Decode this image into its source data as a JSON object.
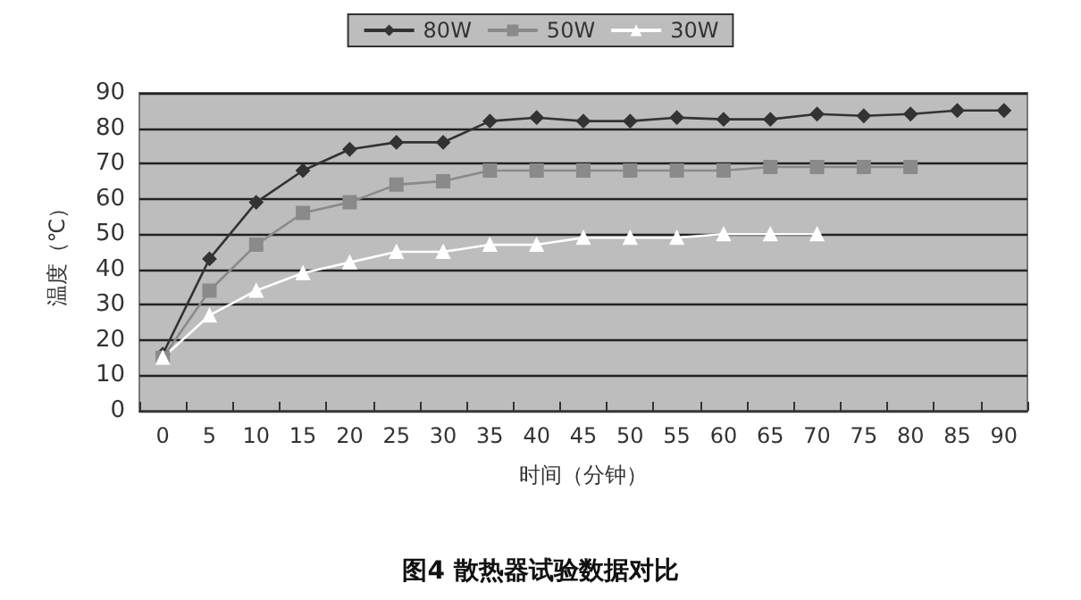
{
  "chart_data": {
    "type": "line",
    "title": "图4 散热器试验数据对比",
    "xlabel": "时间（分钟）",
    "ylabel": "温度（℃）",
    "categories": [
      "0",
      "5",
      "10",
      "15",
      "20",
      "25",
      "30",
      "35",
      "40",
      "45",
      "50",
      "55",
      "60",
      "65",
      "70",
      "75",
      "80",
      "85",
      "90"
    ],
    "ylim": [
      0,
      90
    ],
    "yticks": [
      0,
      10,
      20,
      30,
      40,
      50,
      60,
      70,
      80,
      90
    ],
    "grid": "y",
    "legend": "top",
    "series": [
      {
        "name": "80W",
        "color": "#333333",
        "marker": "diamond",
        "values": [
          16,
          43,
          59,
          68,
          74,
          76,
          76,
          82,
          83,
          82,
          82,
          83,
          82.5,
          82.5,
          84,
          83.5,
          84,
          85,
          85
        ]
      },
      {
        "name": "50W",
        "color": "#8a8a8a",
        "marker": "square",
        "values": [
          15,
          34,
          47,
          56,
          59,
          64,
          65,
          68,
          68,
          68,
          68,
          68,
          68,
          69,
          69,
          69,
          69,
          null,
          null
        ]
      },
      {
        "name": "30W",
        "color": "#ffffff",
        "marker": "triangle",
        "values": [
          15,
          27,
          34,
          39,
          42,
          45,
          45,
          47,
          47,
          49,
          49,
          49,
          50,
          50,
          50,
          null,
          null,
          null,
          null
        ]
      }
    ]
  }
}
